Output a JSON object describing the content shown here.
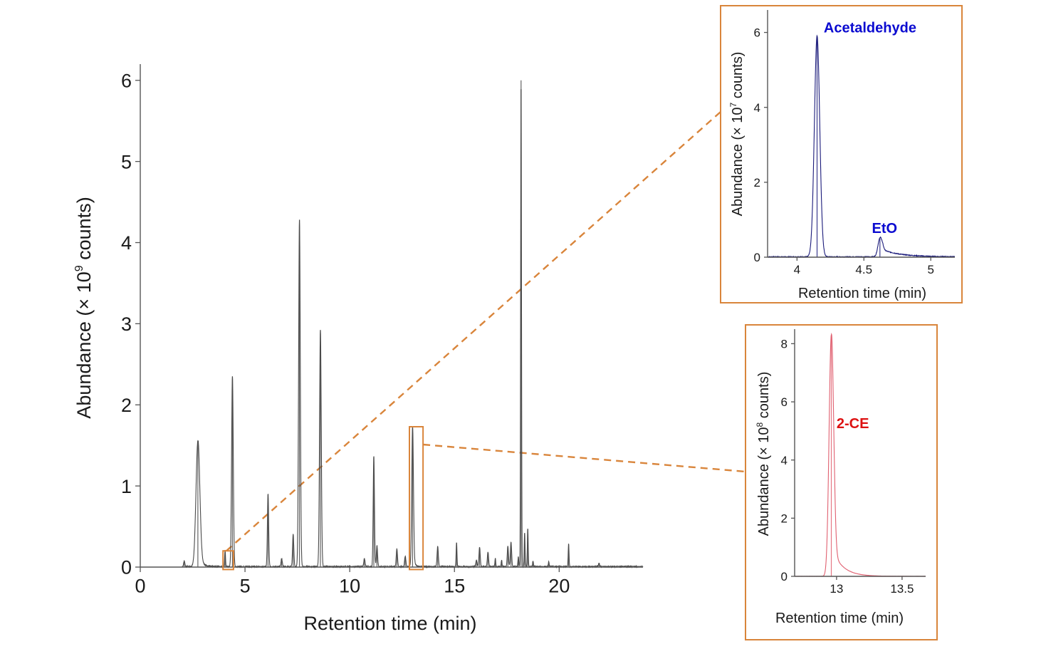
{
  "colors": {
    "main_trace": "#4a4a4a",
    "axis": "#555555",
    "highlight": "#d9853b",
    "inset1_trace": "#1a1a7a",
    "inset1_label": "#0a0ad0",
    "inset2_trace": "#e06070",
    "inset2_label": "#dd1111"
  },
  "chart_data": [
    {
      "id": "main",
      "type": "line",
      "title": "",
      "xlabel": "Retention time (min)",
      "ylabel_prefix": "Abundance (× 10",
      "ylabel_exp": "9",
      "ylabel_suffix": " counts)",
      "xlim": [
        0,
        24
      ],
      "ylim": [
        0,
        6.2
      ],
      "xticks": [
        0,
        5,
        10,
        15,
        20
      ],
      "yticks": [
        0,
        1,
        2,
        3,
        4,
        5,
        6
      ],
      "grid": false,
      "peaks": [
        {
          "t": 2.1,
          "h": 0.07,
          "w": 0.03
        },
        {
          "t": 2.75,
          "h": 1.55,
          "w": 0.09,
          "tail": 0.35
        },
        {
          "t": 4.05,
          "h": 0.2,
          "w": 0.02
        },
        {
          "t": 4.4,
          "h": 2.35,
          "w": 0.04
        },
        {
          "t": 6.1,
          "h": 0.9,
          "w": 0.03
        },
        {
          "t": 6.75,
          "h": 0.1,
          "w": 0.03
        },
        {
          "t": 7.3,
          "h": 0.4,
          "w": 0.03
        },
        {
          "t": 7.6,
          "h": 4.28,
          "w": 0.04
        },
        {
          "t": 8.6,
          "h": 2.92,
          "w": 0.04
        },
        {
          "t": 10.7,
          "h": 0.1,
          "w": 0.03
        },
        {
          "t": 11.15,
          "h": 1.36,
          "w": 0.03
        },
        {
          "t": 11.3,
          "h": 0.26,
          "w": 0.03
        },
        {
          "t": 12.25,
          "h": 0.22,
          "w": 0.03
        },
        {
          "t": 12.65,
          "h": 0.13,
          "w": 0.03
        },
        {
          "t": 13.0,
          "h": 1.72,
          "w": 0.04,
          "tail": 0.15
        },
        {
          "t": 14.2,
          "h": 0.25,
          "w": 0.03
        },
        {
          "t": 15.1,
          "h": 0.3,
          "w": 0.02
        },
        {
          "t": 16.05,
          "h": 0.08,
          "w": 0.03
        },
        {
          "t": 16.2,
          "h": 0.24,
          "w": 0.03
        },
        {
          "t": 16.6,
          "h": 0.18,
          "w": 0.03
        },
        {
          "t": 16.95,
          "h": 0.1,
          "w": 0.02
        },
        {
          "t": 17.25,
          "h": 0.08,
          "w": 0.02
        },
        {
          "t": 17.55,
          "h": 0.25,
          "w": 0.03
        },
        {
          "t": 17.7,
          "h": 0.3,
          "w": 0.03
        },
        {
          "t": 18.05,
          "h": 0.12,
          "w": 0.02
        },
        {
          "t": 18.18,
          "h": 6.0,
          "w": 0.02
        },
        {
          "t": 18.35,
          "h": 0.42,
          "w": 0.02
        },
        {
          "t": 18.5,
          "h": 0.47,
          "w": 0.02
        },
        {
          "t": 18.75,
          "h": 0.07,
          "w": 0.02
        },
        {
          "t": 19.5,
          "h": 0.06,
          "w": 0.02
        },
        {
          "t": 20.45,
          "h": 0.28,
          "w": 0.02
        },
        {
          "t": 21.9,
          "h": 0.04,
          "w": 0.03
        }
      ],
      "zoom_regions": [
        {
          "name": "acetaldehyde-eto-region",
          "t": [
            3.95,
            4.45
          ],
          "v": [
            -0.03,
            0.2
          ]
        },
        {
          "name": "2ce-region",
          "t": [
            12.85,
            13.5
          ],
          "v": [
            -0.03,
            1.73
          ]
        }
      ]
    },
    {
      "id": "inset-acetaldehyde-eto",
      "type": "line",
      "xlabel": "Retention time (min)",
      "ylabel_prefix": "Abundance (× 10",
      "ylabel_exp": "7",
      "ylabel_suffix": " counts)",
      "xlim": [
        3.78,
        5.18
      ],
      "ylim": [
        0,
        6.6
      ],
      "xticks": [
        4,
        4.5,
        5
      ],
      "xtick_labels": [
        "4",
        "4.5",
        "5"
      ],
      "yticks": [
        0,
        2,
        4,
        6
      ],
      "grid": false,
      "peaks": [
        {
          "t": 4.15,
          "h": 5.9,
          "w": 0.02
        },
        {
          "t": 4.62,
          "h": 0.5,
          "w": 0.015,
          "tail": 0.3,
          "tail_h": 0.22
        }
      ],
      "annotations": [
        {
          "text": "Acetaldehyde",
          "t": 4.2,
          "v": 6.0
        },
        {
          "text": "EtO",
          "t": 4.56,
          "v": 0.65
        }
      ]
    },
    {
      "id": "inset-2ce",
      "type": "line",
      "xlabel": "Retention time (min)",
      "ylabel_prefix": "Abundance (× 10",
      "ylabel_exp": "8",
      "ylabel_suffix": " counts)",
      "xlim": [
        12.68,
        13.68
      ],
      "ylim": [
        0,
        8.5
      ],
      "xticks": [
        13,
        13.5
      ],
      "xtick_labels": [
        "13",
        "13.5"
      ],
      "yticks": [
        0,
        2,
        4,
        6,
        8
      ],
      "grid": false,
      "peaks": [
        {
          "t": 12.96,
          "h": 8.3,
          "w": 0.017,
          "tail": 0.18,
          "tail_h": 1.0
        }
      ],
      "annotations": [
        {
          "text": "2-CE",
          "t": 13.0,
          "v": 5.1
        }
      ]
    }
  ]
}
